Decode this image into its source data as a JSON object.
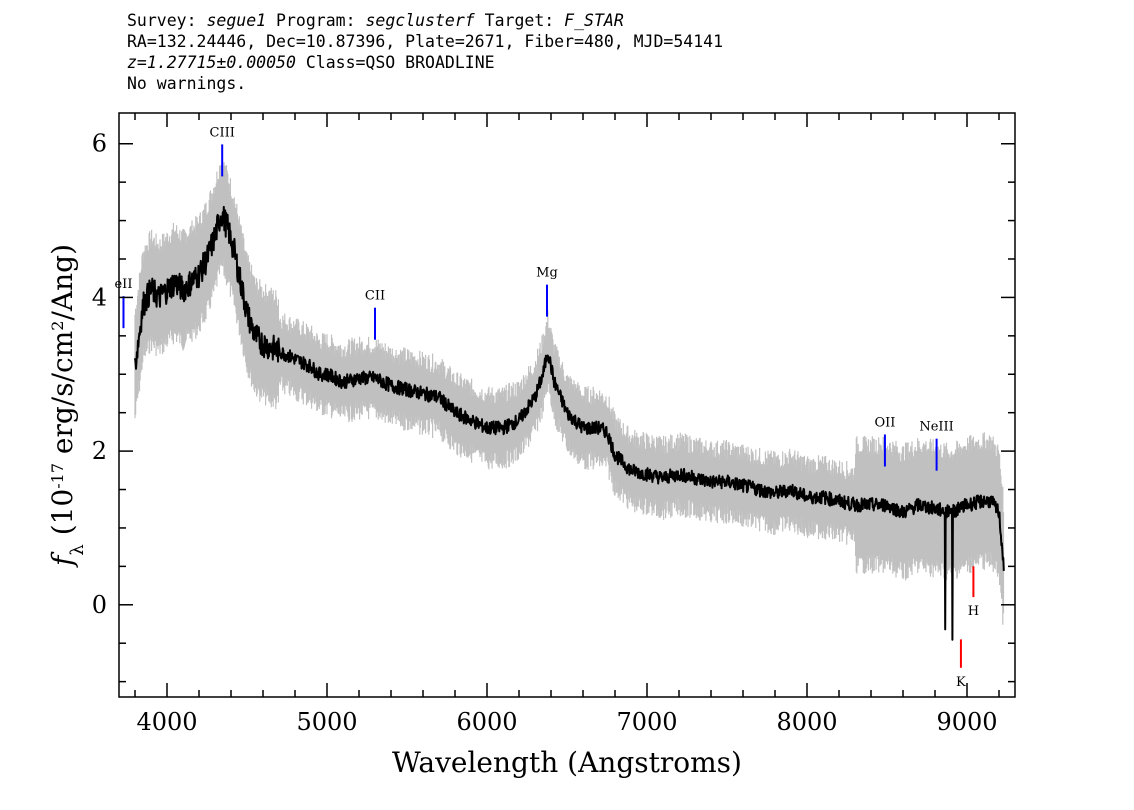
{
  "header": {
    "survey_label": "Survey:",
    "survey": "segue1",
    "program_label": "Program:",
    "program": "segclusterf",
    "target_label": "Target:",
    "target": "F_STAR",
    "line2": "RA=132.24446, Dec=10.87396, Plate=2671, Fiber=480, MJD=54141",
    "redshift": "z=1.27715±0.00050",
    "class": "Class=QSO BROADLINE",
    "warnings": "No warnings."
  },
  "chart_data": {
    "type": "line",
    "xlabel": "Wavelength (Angstroms)",
    "ylabel": "f_λ (10^-17 erg/s/cm^2/Ang)",
    "xlim": [
      3700,
      9300
    ],
    "ylim": [
      -1.2,
      6.4
    ],
    "x_ticks": [
      4000,
      5000,
      6000,
      7000,
      8000,
      9000
    ],
    "y_ticks": [
      0,
      2,
      4,
      6
    ],
    "colors": {
      "flux": "#000000",
      "noise": "#c0c0c0",
      "emission": "#0000ff",
      "absorption": "#ff0000"
    },
    "series": [
      {
        "role": "flux",
        "x": [
          3800,
          3850,
          3900,
          3950,
          4000,
          4050,
          4100,
          4150,
          4200,
          4250,
          4300,
          4340,
          4380,
          4420,
          4460,
          4500,
          4550,
          4600,
          4650,
          4700,
          4750,
          4800,
          4850,
          4900,
          4950,
          5000,
          5100,
          5200,
          5300,
          5400,
          5500,
          5600,
          5700,
          5800,
          5900,
          6000,
          6100,
          6200,
          6300,
          6350,
          6380,
          6420,
          6500,
          6600,
          6700,
          6750,
          6800,
          6900,
          7000,
          7100,
          7200,
          7300,
          7400,
          7500,
          7600,
          7700,
          7800,
          7900,
          8000,
          8100,
          8200,
          8300,
          8400,
          8500,
          8600,
          8700,
          8800,
          8900,
          9000,
          9100,
          9150,
          9200,
          9230
        ],
        "y": [
          3.1,
          3.9,
          4.1,
          4.0,
          4.1,
          4.2,
          4.1,
          4.2,
          4.3,
          4.5,
          4.8,
          5.1,
          4.9,
          4.6,
          4.2,
          3.8,
          3.5,
          3.4,
          3.35,
          3.3,
          3.25,
          3.2,
          3.15,
          3.1,
          3.0,
          3.0,
          2.9,
          2.95,
          2.95,
          2.85,
          2.8,
          2.75,
          2.7,
          2.5,
          2.4,
          2.3,
          2.3,
          2.4,
          2.7,
          3.0,
          3.3,
          2.9,
          2.5,
          2.3,
          2.3,
          2.25,
          1.95,
          1.75,
          1.7,
          1.65,
          1.7,
          1.65,
          1.6,
          1.6,
          1.55,
          1.5,
          1.45,
          1.5,
          1.4,
          1.4,
          1.35,
          1.3,
          1.3,
          1.3,
          1.2,
          1.3,
          1.25,
          1.2,
          1.3,
          1.35,
          1.35,
          1.2,
          0.5
        ]
      }
    ],
    "spectral_lines": [
      {
        "label": "eII",
        "wavelength": 3728,
        "type": "emission"
      },
      {
        "label": "CIII",
        "wavelength": 4345,
        "type": "emission"
      },
      {
        "label": "CII",
        "wavelength": 5300,
        "type": "emission"
      },
      {
        "label": "Mg",
        "wavelength": 6375,
        "type": "emission"
      },
      {
        "label": "OII",
        "wavelength": 8487,
        "type": "emission"
      },
      {
        "label": "NeIII",
        "wavelength": 8810,
        "type": "emission"
      },
      {
        "label": "H",
        "wavelength": 9040,
        "type": "absorption"
      },
      {
        "label": "K",
        "wavelength": 8962,
        "type": "absorption"
      }
    ]
  }
}
